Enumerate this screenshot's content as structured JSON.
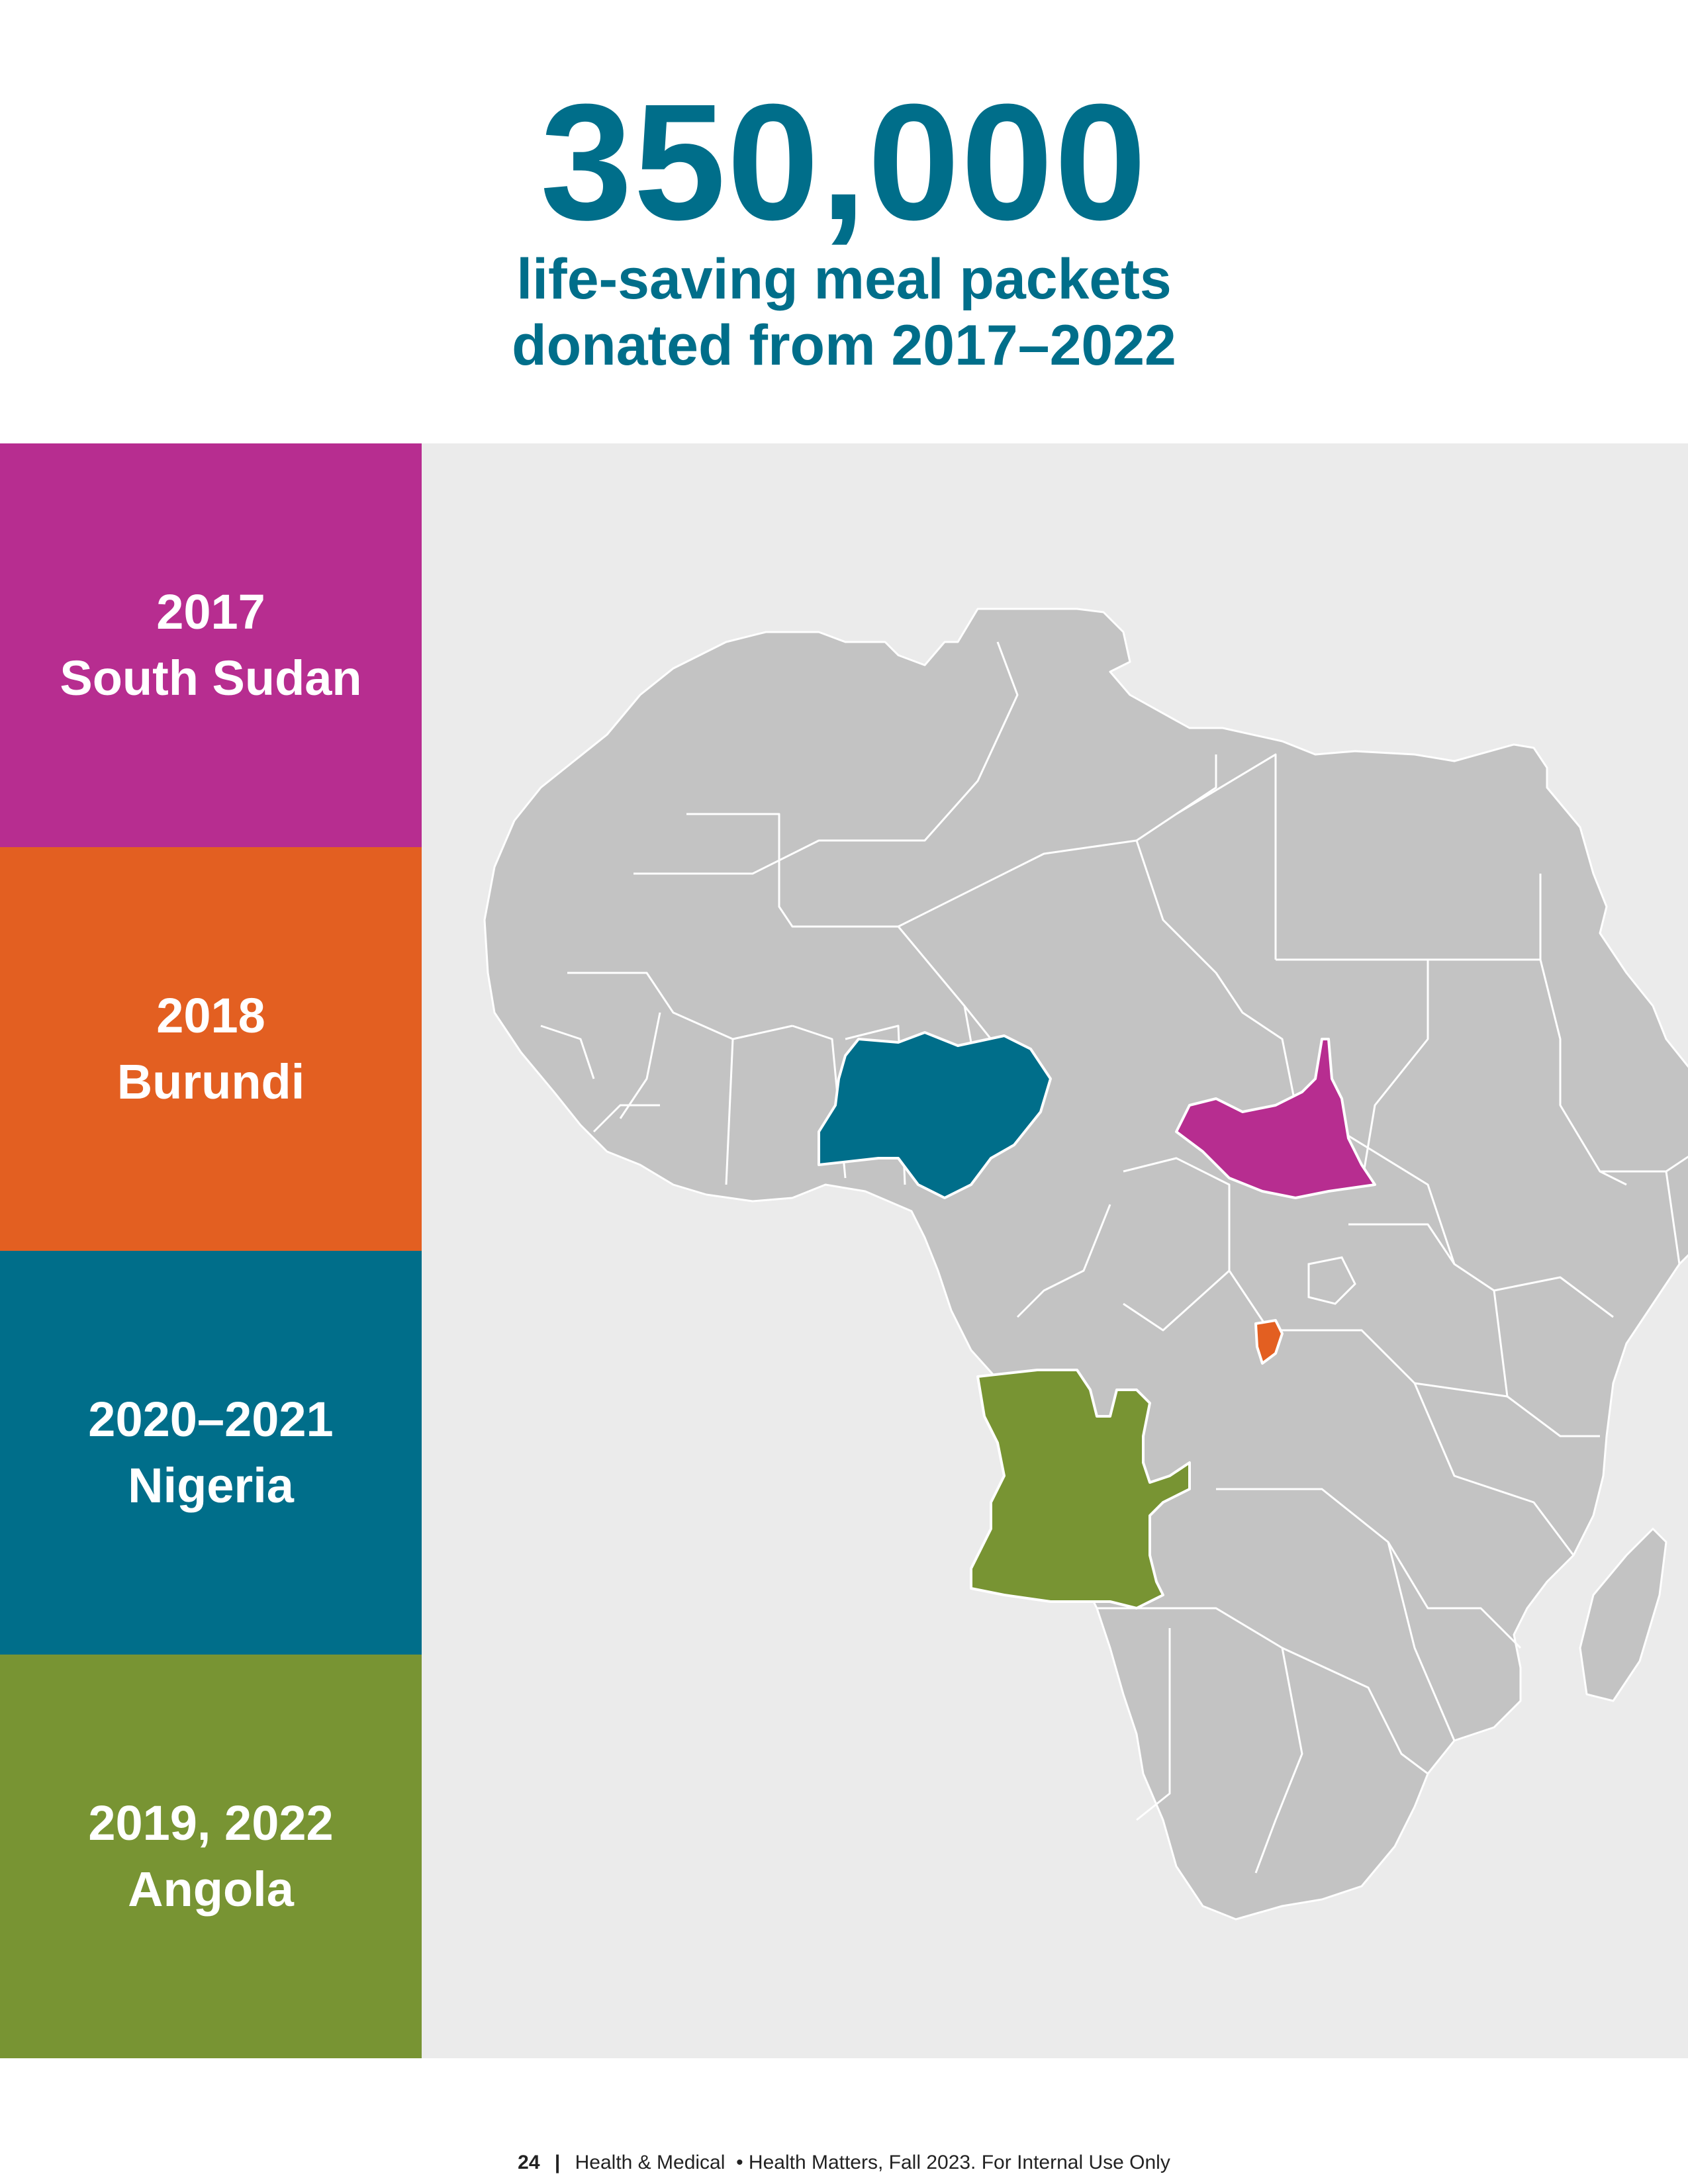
{
  "headline": "350,000",
  "subhead": {
    "line1": "life-saving meal packets",
    "line2": "donated from 2017–2022"
  },
  "legend": [
    {
      "years": "2017",
      "country": "South Sudan",
      "color": "#b72d90"
    },
    {
      "years": "2018",
      "country": "Burundi",
      "color": "#e35f21"
    },
    {
      "years": "2020–2021",
      "country": "Nigeria",
      "color": "#006e8a"
    },
    {
      "years": "2019, 2022",
      "country": "Angola",
      "color": "#789433"
    }
  ],
  "map": {
    "background": "#ebebeb",
    "land_color": "#c3c3c3",
    "border_color": "#ffffff",
    "highlighted": [
      {
        "country": "South Sudan",
        "color": "#b72d90"
      },
      {
        "country": "Burundi",
        "color": "#e35f21"
      },
      {
        "country": "Nigeria",
        "color": "#006e8a"
      },
      {
        "country": "Angola",
        "color": "#789433"
      }
    ]
  },
  "footer": {
    "page_number": "24",
    "separator": "|",
    "text": "Health & Medical  • Health Matters, Fall 2023. For Internal Use Only"
  }
}
